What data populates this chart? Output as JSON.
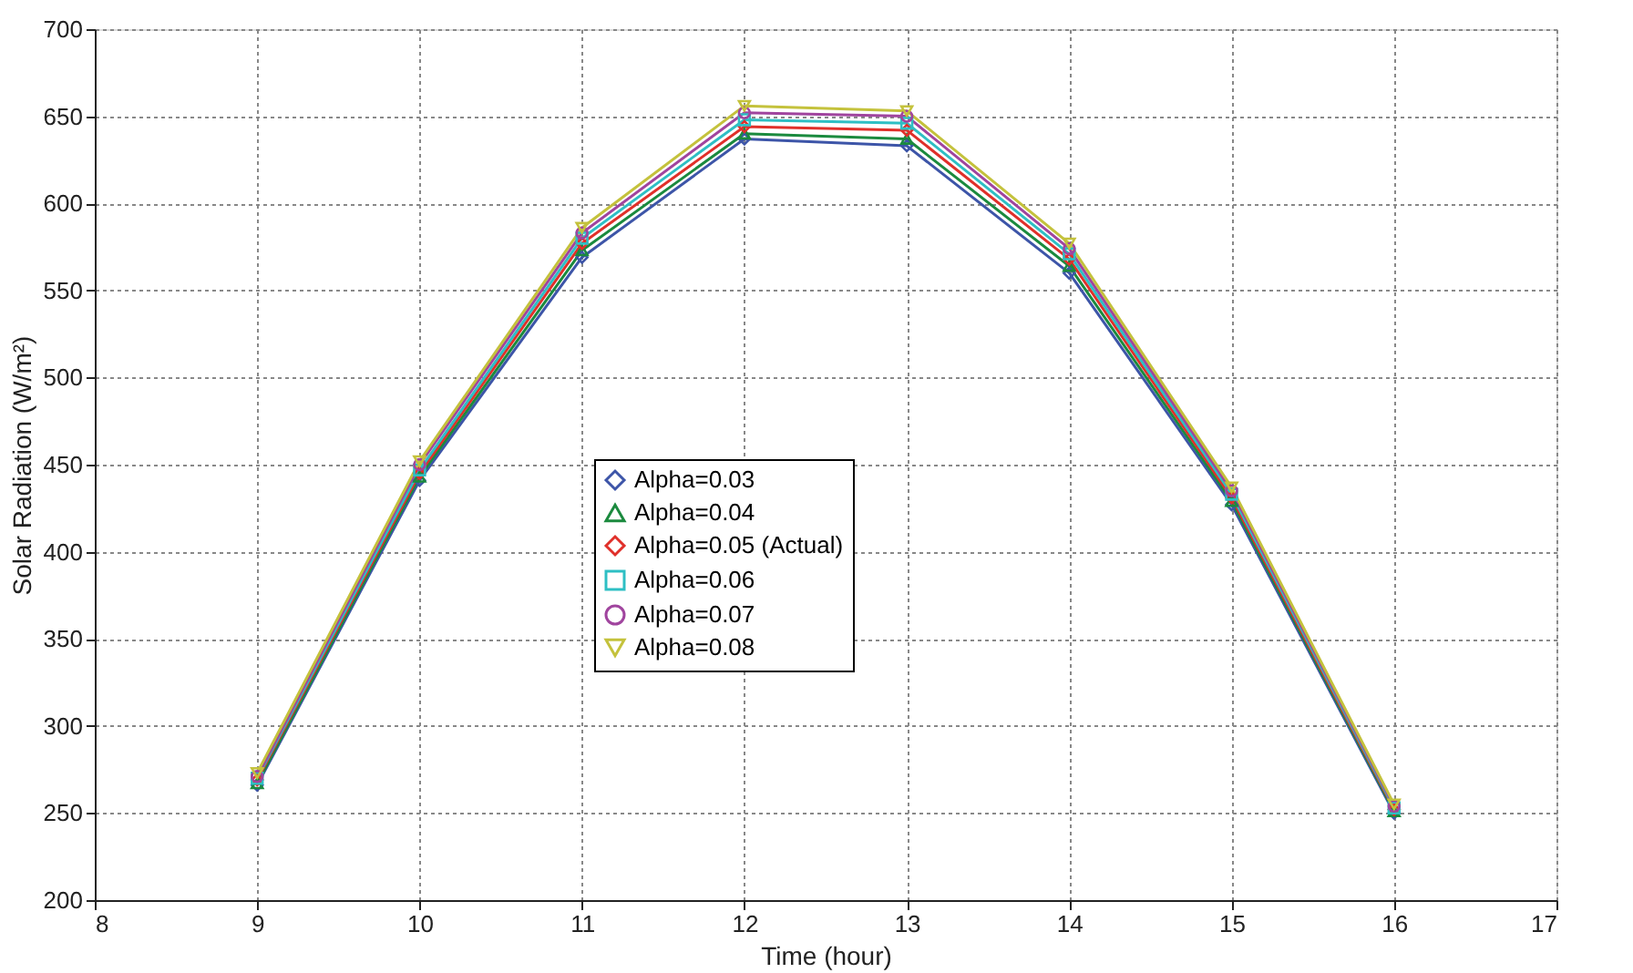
{
  "chart_data": {
    "type": "line",
    "xlabel": "Time (hour)",
    "ylabel": "Solar Radiation (W/m²)",
    "x": [
      9,
      10,
      11,
      12,
      13,
      14,
      15,
      16
    ],
    "xlim": [
      8,
      17
    ],
    "xticks": [
      8,
      9,
      10,
      11,
      12,
      13,
      14,
      15,
      16,
      17
    ],
    "ylim": [
      200,
      700
    ],
    "yticks": [
      200,
      250,
      300,
      350,
      400,
      450,
      500,
      550,
      600,
      650,
      700
    ],
    "grid": true,
    "legend": "center",
    "line_style": "solid",
    "series": [
      {
        "name": "Alpha=0.03",
        "color": "#3d55a8",
        "marker": "diamond",
        "values": [
          266,
          441,
          569,
          637,
          633,
          560,
          427,
          250
        ]
      },
      {
        "name": "Alpha=0.04",
        "color": "#1b8a3e",
        "marker": "triangle",
        "values": [
          267,
          443,
          573,
          640,
          637,
          564,
          429,
          251
        ]
      },
      {
        "name": "Alpha=0.05 (Actual)",
        "color": "#e0302a",
        "marker": "diamond",
        "values": [
          269,
          445,
          577,
          644,
          642,
          568,
          431,
          252
        ]
      },
      {
        "name": "Alpha=0.06",
        "color": "#2ebfc4",
        "marker": "square",
        "values": [
          270,
          447,
          580,
          648,
          646,
          571,
          433,
          253
        ]
      },
      {
        "name": "Alpha=0.07",
        "color": "#a0449e",
        "marker": "circle",
        "values": [
          271,
          450,
          583,
          652,
          650,
          574,
          435,
          254
        ]
      },
      {
        "name": "Alpha=0.08",
        "color": "#c4c23c",
        "marker": "triangle-down",
        "values": [
          273,
          452,
          586,
          656,
          653,
          577,
          437,
          255
        ]
      }
    ]
  }
}
